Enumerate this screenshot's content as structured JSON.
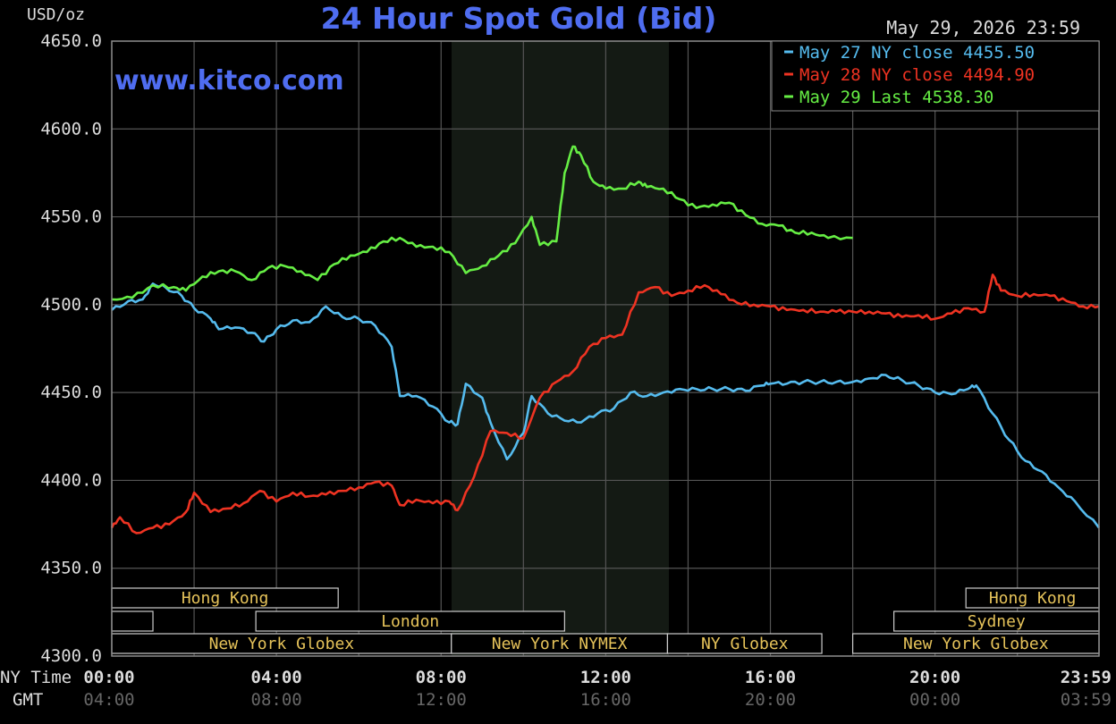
{
  "chart_data": {
    "type": "line",
    "title": "24 Hour Spot Gold (Bid)",
    "ylabel": "USD/oz",
    "date_label": "May 29, 2026 23:59",
    "watermark": "www.kitco.com",
    "ylim": [
      4300,
      4650
    ],
    "y_ticks": [
      "4650.0",
      "4600.0",
      "4550.0",
      "4500.0",
      "4450.0",
      "4400.0",
      "4350.0",
      "4300.0"
    ],
    "y_tick_values": [
      4650,
      4600,
      4550,
      4500,
      4450,
      4400,
      4350,
      4300
    ],
    "xlim": [
      0,
      23.983
    ],
    "x_row_labels": [
      "NY Time",
      "GMT"
    ],
    "x_ticks_ny": [
      "00:00",
      "04:00",
      "08:00",
      "12:00",
      "16:00",
      "20:00",
      "23:59"
    ],
    "x_ticks_gmt": [
      "04:00",
      "08:00",
      "12:00",
      "16:00",
      "20:00",
      "00:00",
      "03:59"
    ],
    "x_tick_values": [
      0,
      4,
      8,
      12,
      16,
      20,
      23.983
    ],
    "grid": true,
    "legend_position": "top-right",
    "shaded_period": [
      8.25,
      13.5
    ],
    "series": [
      {
        "name": "May 27 NY close 4455.50",
        "color": "#55bbee",
        "x": [
          0,
          0.4,
          0.75,
          1,
          1.3,
          1.7,
          2,
          2.4,
          2.6,
          3,
          3.4,
          3.7,
          4,
          4.4,
          4.8,
          5.2,
          5.6,
          6,
          6.4,
          6.8,
          7,
          7.4,
          7.8,
          8.2,
          8.4,
          8.6,
          9,
          9.2,
          9.6,
          10,
          10.2,
          10.6,
          11,
          11.4,
          11.8,
          12.2,
          12.6,
          13,
          13.4,
          13.8,
          14.2,
          14.6,
          15,
          15.4,
          15.8,
          16,
          16.4,
          16.8,
          17.2,
          17.6,
          18,
          18.4,
          18.8,
          19.2,
          19.6,
          20,
          20.4,
          20.8,
          21,
          21.4,
          21.8,
          22.2,
          22.6,
          23,
          23.4,
          23.983
        ],
        "y": [
          4497,
          4502,
          4503,
          4512,
          4510,
          4505,
          4498,
          4492,
          4486,
          4487,
          4484,
          4479,
          4486,
          4491,
          4490,
          4499,
          4493,
          4492,
          4488,
          4476,
          4448,
          4448,
          4442,
          4433,
          4432,
          4455,
          4447,
          4433,
          4412,
          4427,
          4448,
          4438,
          4434,
          4433,
          4438,
          4441,
          4450,
          4448,
          4450,
          4452,
          4452,
          4452,
          4452,
          4451,
          4454,
          4455,
          4455,
          4456,
          4456,
          4456,
          4456,
          4458,
          4460,
          4457,
          4454,
          4450,
          4449,
          4452,
          4454,
          4438,
          4423,
          4411,
          4405,
          4396,
          4388,
          4373
        ]
      },
      {
        "name": "May 28 NY close 4494.90",
        "color": "#ee3322",
        "x": [
          0,
          0.2,
          0.6,
          1,
          1.4,
          1.8,
          2,
          2.4,
          2.8,
          3.2,
          3.6,
          4,
          4.4,
          4.8,
          5.2,
          5.6,
          6,
          6.4,
          6.8,
          7,
          7.4,
          7.8,
          8.2,
          8.4,
          8.8,
          9.2,
          9.6,
          10,
          10.4,
          10.8,
          11.2,
          11.6,
          12,
          12.4,
          12.8,
          13.2,
          13.6,
          14,
          14.4,
          14.8,
          15.2,
          15.6,
          16,
          16.4,
          16.8,
          17.2,
          17.6,
          18,
          18.4,
          18.8,
          19.2,
          19.6,
          20,
          20.4,
          20.8,
          21.2,
          21.4,
          21.6,
          22,
          22.4,
          22.8,
          23.2,
          23.6,
          23.983
        ],
        "y": [
          4373,
          4379,
          4370,
          4373,
          4375,
          4382,
          4393,
          4382,
          4384,
          4387,
          4394,
          4388,
          4393,
          4391,
          4392,
          4394,
          4396,
          4399,
          4397,
          4386,
          4389,
          4387,
          4388,
          4383,
          4402,
          4428,
          4427,
          4424,
          4447,
          4456,
          4462,
          4476,
          4481,
          4483,
          4507,
          4510,
          4505,
          4508,
          4511,
          4506,
          4501,
          4500,
          4499,
          4497,
          4497,
          4496,
          4496,
          4496,
          4496,
          4495,
          4493,
          4494,
          4492,
          4495,
          4498,
          4496,
          4517,
          4508,
          4505,
          4506,
          4505,
          4502,
          4499,
          4499
        ]
      },
      {
        "name": "May 29 Last 4538.30",
        "color": "#66ee44",
        "x": [
          0,
          0.5,
          1,
          1.5,
          1.8,
          2.2,
          2.6,
          3,
          3.4,
          3.8,
          4.2,
          4.6,
          5,
          5.4,
          5.8,
          6.2,
          6.6,
          7,
          7.4,
          7.8,
          8.2,
          8.6,
          9,
          9.4,
          9.8,
          10.2,
          10.4,
          10.8,
          11,
          11.2,
          11.4,
          11.7,
          12,
          12.4,
          12.8,
          13,
          13.4,
          13.8,
          14.2,
          14.6,
          15,
          15.4,
          15.8,
          16.2,
          16.6,
          17,
          17.4,
          18
        ],
        "y": [
          4503,
          4504,
          4511,
          4510,
          4508,
          4516,
          4519,
          4519,
          4514,
          4521,
          4522,
          4519,
          4514,
          4523,
          4528,
          4530,
          4536,
          4538,
          4533,
          4533,
          4530,
          4518,
          4522,
          4528,
          4535,
          4550,
          4534,
          4536,
          4575,
          4590,
          4585,
          4570,
          4566,
          4566,
          4570,
          4567,
          4566,
          4560,
          4555,
          4557,
          4558,
          4551,
          4546,
          4545,
          4541,
          4541,
          4538,
          4538
        ]
      }
    ],
    "sessions": [
      {
        "label": "Hong Kong",
        "row": 0,
        "start": 0,
        "end": 5.5
      },
      {
        "label": "",
        "row": 1,
        "start": 0,
        "end": 1
      },
      {
        "label": "London",
        "row": 1,
        "start": 3.5,
        "end": 11
      },
      {
        "label": "New York Globex",
        "row": 2,
        "start": 0,
        "end": 8.25
      },
      {
        "label": "New York NYMEX",
        "row": 2,
        "start": 8.25,
        "end": 13.5
      },
      {
        "label": "NY Globex",
        "row": 2,
        "start": 13.5,
        "end": 17.25
      },
      {
        "label": "Hong Kong",
        "row": 0,
        "start": 20.75,
        "end": 23.983
      },
      {
        "label": "Sydney",
        "row": 1,
        "start": 19.0,
        "end": 23.983
      },
      {
        "label": "New York Globex",
        "row": 2,
        "start": 18.0,
        "end": 23.983
      }
    ]
  }
}
